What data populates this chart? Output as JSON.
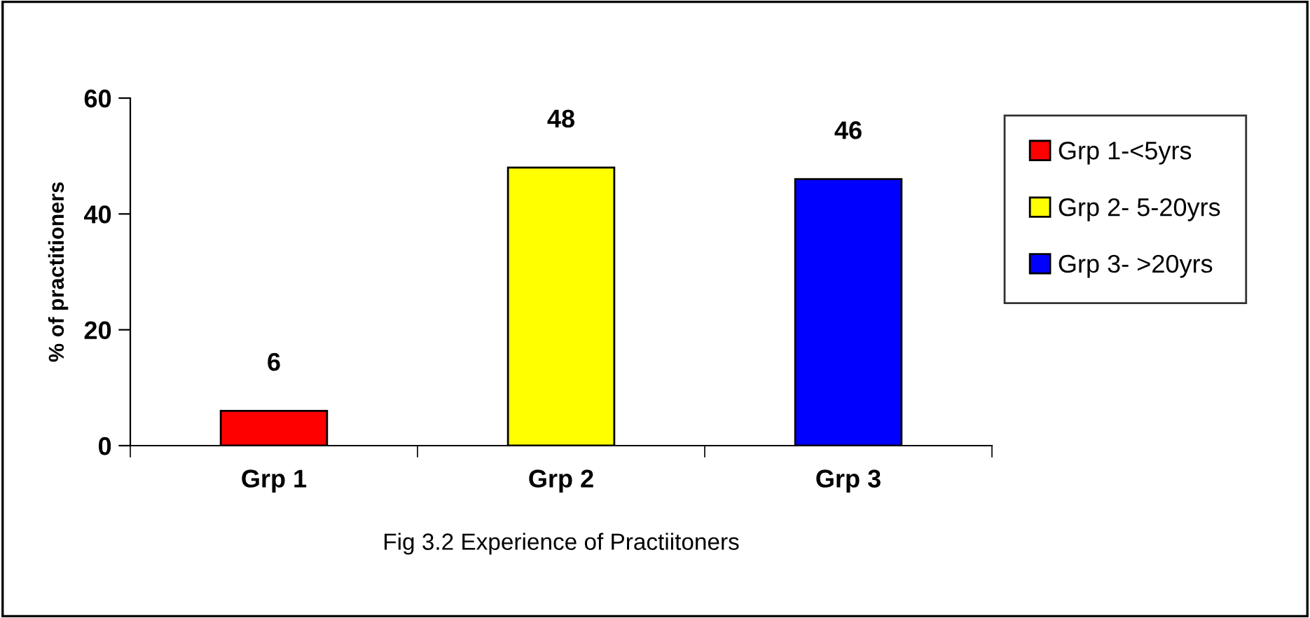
{
  "chart_data": {
    "type": "bar",
    "ylabel": "% of practitioners",
    "categories": [
      "Grp 1",
      "Grp 2",
      "Grp 3"
    ],
    "series": [
      {
        "name": "Grp 1-<5yrs",
        "color": "#ff0000",
        "values": [
          6,
          null,
          null
        ]
      },
      {
        "name": "Grp 2- 5-20yrs",
        "color": "#ffff00",
        "values": [
          null,
          48,
          null
        ]
      },
      {
        "name": "Grp 3- >20yrs",
        "color": "#0000ff",
        "values": [
          null,
          null,
          46
        ]
      }
    ],
    "stacked": true,
    "ylim": [
      0,
      60
    ],
    "yticks": [
      0,
      20,
      40,
      60
    ],
    "data_labels": true,
    "legend": "right",
    "grid": false,
    "annotations": [
      "Fig 3.2 Experience of Practiitoners"
    ]
  }
}
